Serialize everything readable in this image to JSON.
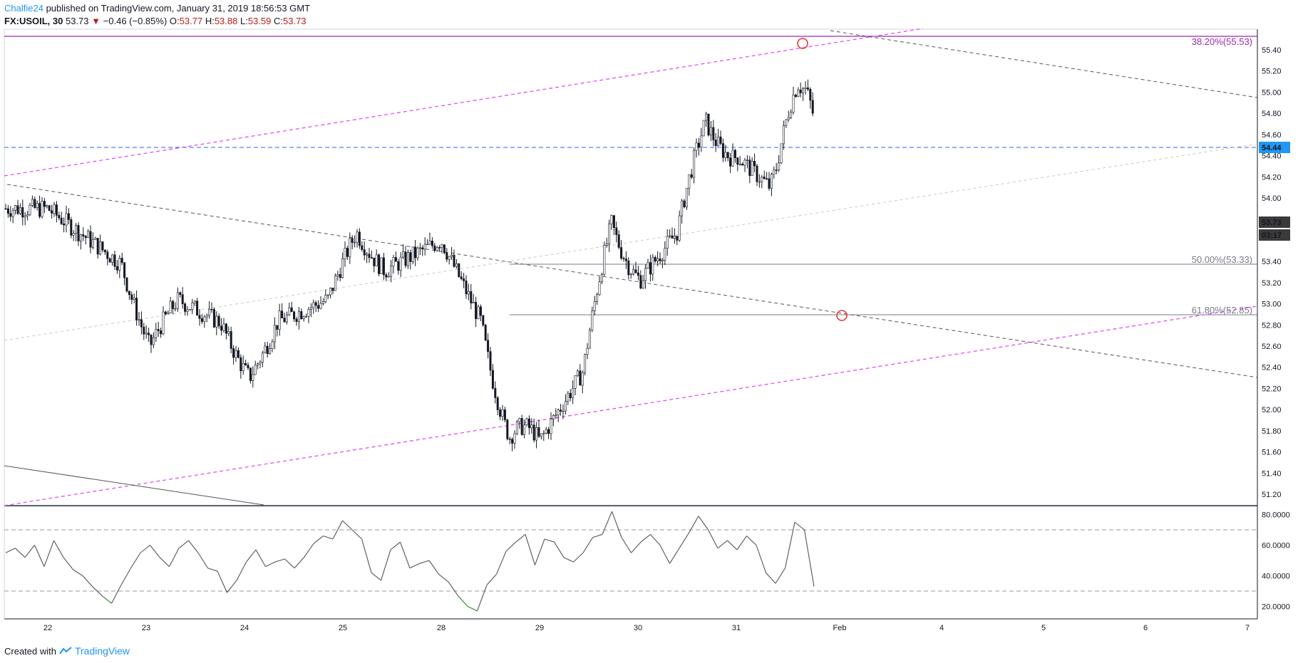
{
  "header": {
    "author": "Chalfie24",
    "published": "published on TradingView.com, January 31, 2019 18:56:53 GMT",
    "symbol_tf": "FX:USOIL, 30",
    "last": "53.73",
    "change": "−0.46 (−0.85%)",
    "o_label": "O:",
    "o_value": "53.77",
    "h_label": "H:",
    "h_value": "53.88",
    "l_label": "L:",
    "l_value": "53.59",
    "c_label": "C:",
    "c_value": "53.73"
  },
  "footer": {
    "created_with": "Created with",
    "brand": "TradingView"
  },
  "colors": {
    "candle": "#131722",
    "fib_purple": "#9c27b0",
    "channel": "#e040fb",
    "blue_line": "#2962ff",
    "price_badge": "#3a3a3a",
    "blue_badge": "#2196f3",
    "rsi_line": "#555555",
    "rsi_over": "#e53935",
    "rsi_under": "#2e7d32",
    "fib_gray": "#787b86",
    "marker": "#e53935"
  },
  "chart_data": [
    {
      "type": "line",
      "subtype": "candlestick",
      "symbol": "FX:USOIL",
      "timeframe": "30",
      "title": "",
      "x_tick_labels": [
        "22",
        "23",
        "24",
        "25",
        "28",
        "29",
        "30",
        "31",
        "Feb",
        "4",
        "5",
        "6",
        "7"
      ],
      "y_tick_labels": [
        "55.40",
        "55.20",
        "55.00",
        "54.80",
        "54.60",
        "54.40",
        "54.20",
        "54.00",
        "53.80",
        "53.40",
        "53.20",
        "53.00",
        "52.80",
        "52.60",
        "52.40",
        "52.20",
        "52.00",
        "51.80",
        "51.60",
        "51.40",
        "51.20"
      ],
      "ylim": [
        51.1,
        55.6
      ],
      "series": [
        {
          "name": "",
          "x": [
            "22",
            "23",
            "24",
            "25",
            "28",
            "29",
            "30",
            "31",
            "31 15:00"
          ],
          "values": [
            53.9,
            53.2,
            52.7,
            53.1,
            53.6,
            51.7,
            53.2,
            54.4,
            53.73
          ],
          "note_style": "candles"
        }
      ],
      "levels": [
        {
          "label": "38.20%(55.53)",
          "value": 55.53
        },
        {
          "label": "50.00%(53.33)",
          "value": 53.33
        },
        {
          "label": "61.80%(52.85)",
          "value": 52.85
        },
        {
          "label": "54.44",
          "value": 54.44
        }
      ],
      "last_price_label": "53.73",
      "countdown_label": "03:17",
      "grid": false
    },
    {
      "type": "line",
      "subtype": "rsi",
      "y_tick_labels": [
        "80.0000",
        "60.0000",
        "40.0000",
        "20.0000"
      ],
      "ylim": [
        15,
        85
      ],
      "bands": [
        70,
        30
      ],
      "series": [
        {
          "name": "",
          "values": [
            55,
            58,
            52,
            60,
            46,
            63,
            52,
            44,
            40,
            33,
            27,
            22,
            34,
            45,
            55,
            60,
            52,
            46,
            58,
            63,
            55,
            45,
            43,
            29,
            37,
            49,
            57,
            46,
            49,
            51,
            45,
            52,
            61,
            66,
            64,
            76,
            70,
            64,
            42,
            37,
            57,
            62,
            45,
            48,
            50,
            41,
            36,
            27,
            20,
            17,
            34,
            41,
            56,
            62,
            67,
            47,
            64,
            62,
            52,
            49,
            55,
            65,
            67,
            82,
            65,
            55,
            62,
            67,
            60,
            48,
            58,
            68,
            79,
            70,
            58,
            63,
            57,
            66,
            60,
            42,
            35,
            45,
            75,
            70,
            33
          ]
        }
      ]
    }
  ]
}
